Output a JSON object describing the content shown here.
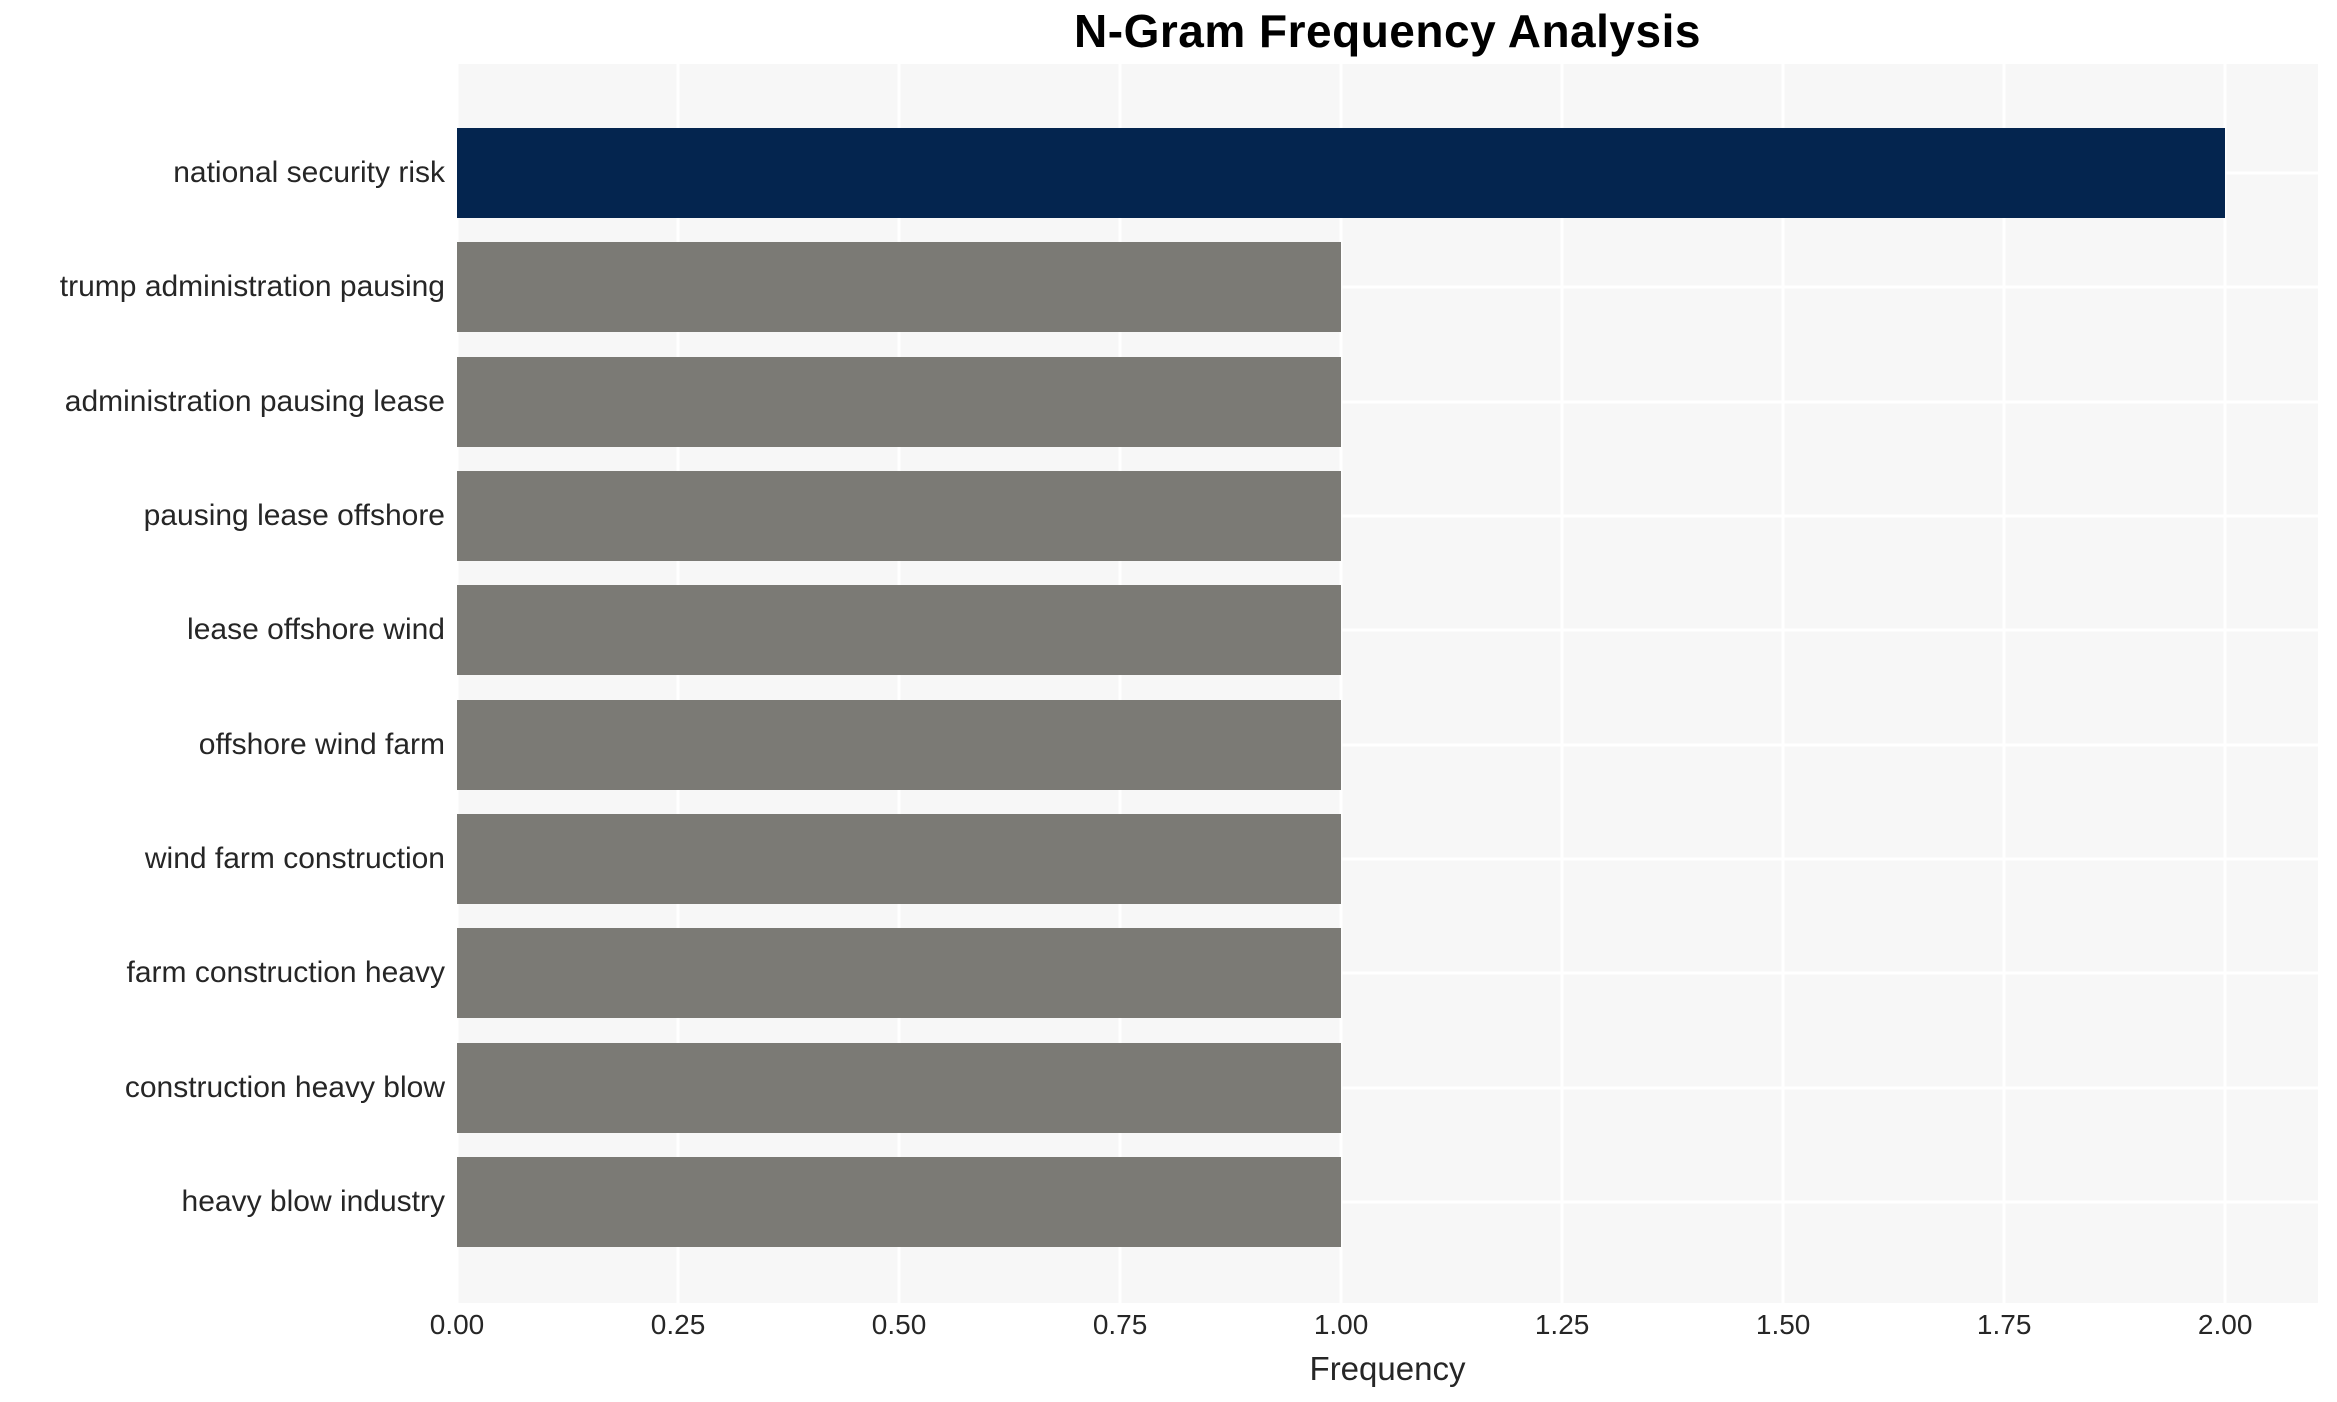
{
  "chart_data": {
    "type": "bar",
    "orientation": "horizontal",
    "title": "N-Gram Frequency Analysis",
    "xlabel": "Frequency",
    "ylabel": "",
    "categories": [
      "national security risk",
      "trump administration pausing",
      "administration pausing lease",
      "pausing lease offshore",
      "lease offshore wind",
      "offshore wind farm",
      "wind farm construction",
      "farm construction heavy",
      "construction heavy blow",
      "heavy blow industry"
    ],
    "values": [
      2,
      1,
      1,
      1,
      1,
      1,
      1,
      1,
      1,
      1
    ],
    "xlim": [
      0,
      2.105
    ],
    "xticks": [
      0.0,
      0.25,
      0.5,
      0.75,
      1.0,
      1.25,
      1.5,
      1.75,
      2.0
    ],
    "xtick_labels": [
      "0.00",
      "0.25",
      "0.50",
      "0.75",
      "1.00",
      "1.25",
      "1.50",
      "1.75",
      "2.00"
    ],
    "grid": true,
    "legend": false,
    "bar_colors": [
      "#04254f",
      "#7b7a75",
      "#7b7a75",
      "#7b7a75",
      "#7b7a75",
      "#7b7a75",
      "#7b7a75",
      "#7b7a75",
      "#7b7a75",
      "#7b7a75"
    ]
  },
  "colors": {
    "highlight_bar": "#04254f",
    "default_bar": "#7b7a75",
    "plot_background": "#f7f7f7",
    "gridline": "#ffffff",
    "text": "#262626",
    "title_text": "#000000",
    "page_background": "#ffffff"
  }
}
